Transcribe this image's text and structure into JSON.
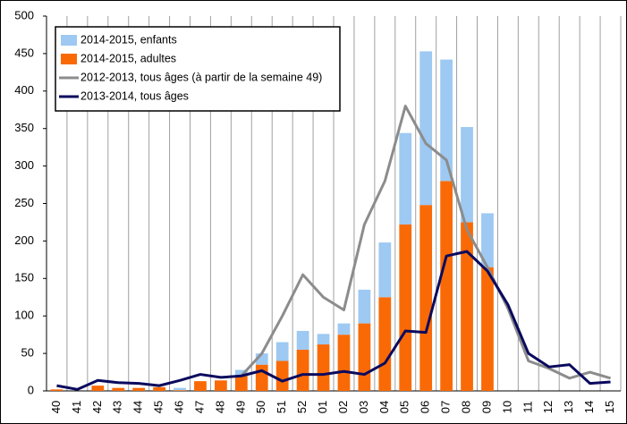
{
  "chart_data": {
    "type": "stacked-bar-line",
    "categories": [
      "40",
      "41",
      "42",
      "43",
      "44",
      "45",
      "46",
      "47",
      "48",
      "49",
      "50",
      "51",
      "52",
      "01",
      "02",
      "03",
      "04",
      "05",
      "06",
      "07",
      "08",
      "09",
      "10",
      "11",
      "12",
      "13",
      "14",
      "15"
    ],
    "series": [
      {
        "name": "2014-2015, enfants",
        "kind": "bar",
        "color": "#9dc9f2",
        "values": [
          0,
          0,
          0,
          0,
          0,
          0,
          3,
          0,
          0,
          8,
          15,
          25,
          25,
          14,
          15,
          45,
          73,
          122,
          205,
          162,
          127,
          72,
          null,
          null,
          null,
          null,
          null,
          null
        ]
      },
      {
        "name": "2014-2015, adultes",
        "kind": "bar",
        "color": "#f96a06",
        "values": [
          2,
          0,
          7,
          4,
          4,
          5,
          1,
          13,
          14,
          20,
          35,
          40,
          55,
          62,
          75,
          90,
          125,
          222,
          248,
          280,
          225,
          165,
          null,
          null,
          null,
          null,
          null,
          null
        ]
      },
      {
        "name": "2012-2013, tous âges (à partir de la semaine 49)",
        "kind": "line",
        "color": "#8c8c8c",
        "values": [
          null,
          null,
          null,
          null,
          null,
          null,
          null,
          null,
          null,
          20,
          50,
          100,
          155,
          125,
          108,
          222,
          280,
          380,
          330,
          308,
          215,
          165,
          110,
          40,
          30,
          17,
          25,
          17
        ]
      },
      {
        "name": "2013-2014, tous âges",
        "kind": "line",
        "color": "#0a0a5e",
        "values": [
          7,
          2,
          14,
          11,
          10,
          7,
          14,
          22,
          18,
          20,
          27,
          13,
          22,
          22,
          26,
          22,
          37,
          80,
          78,
          180,
          186,
          160,
          115,
          50,
          32,
          35,
          10,
          12
        ]
      }
    ],
    "ylim": [
      0,
      500
    ],
    "yticks": [
      0,
      50,
      100,
      150,
      200,
      250,
      300,
      350,
      400,
      450,
      500
    ],
    "legend": "upper left"
  }
}
